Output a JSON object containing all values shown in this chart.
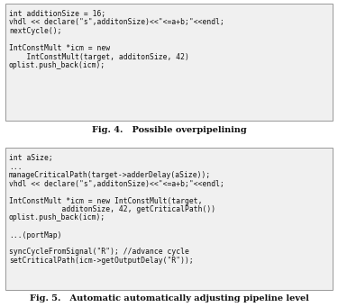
{
  "fig4_caption_bold": "Fig. 4.",
  "fig4_caption_normal": "   Possible overpipelining",
  "fig5_caption_bold": "Fig. 5.",
  "fig5_caption_normal": "   Automatic automatically adjusting pipeline level",
  "box1_lines": [
    "int additionSize = 16;",
    "vhdl << declare(\"s\",additonSize)<<\"<=a+b;\"<<endl;",
    "nextCycle();",
    "",
    "IntConstMult *icm = new",
    "    IntConstMult(target, additonSize, 42)",
    "oplist.push_back(icm);"
  ],
  "box2_lines": [
    "int aSize;",
    "...",
    "manageCriticalPath(target->adderDelay(aSize));",
    "vhdl << declare(\"s\",additonSize)<<\"<=a+b;\"<<endl;",
    "",
    "IntConstMult *icm = new IntConstMult(target,",
    "            additonSize, 42, getCriticalPath())",
    "oplist.push_back(icm);",
    "",
    "...(portMap)",
    "",
    "syncCycleFromSignal(\"R\"); //advance cycle",
    "setCriticalPath(icm->getOutputDelay(\"R\"));"
  ],
  "box_bg": "#f0f0f0",
  "box_border": "#999999",
  "text_color": "#111111",
  "bg_color": "#ffffff",
  "font_size": 5.8,
  "caption_font_size": 7.0
}
